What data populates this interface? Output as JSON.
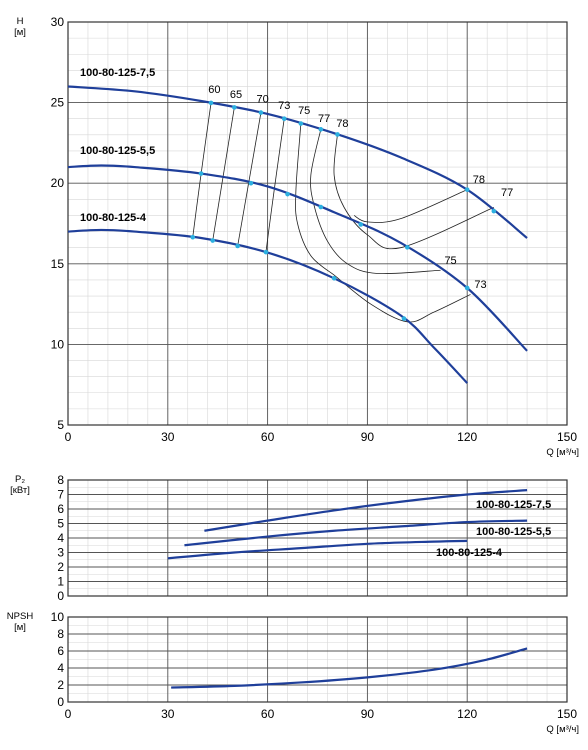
{
  "chart_data": [
    {
      "type": "line",
      "title": "",
      "ylabel": "H\n[м]",
      "xlabel": "Q [м³/ч]",
      "xlim": [
        0,
        150
      ],
      "ylim": [
        5,
        30
      ],
      "xticks": [
        0,
        30,
        60,
        90,
        120,
        150
      ],
      "yticks": [
        5,
        10,
        15,
        20,
        25,
        30
      ],
      "grid": true,
      "series": [
        {
          "name": "100-80-125-7,5",
          "x": [
            0,
            20,
            40,
            60,
            80,
            100,
            120,
            138
          ],
          "y": [
            26,
            25.7,
            25.1,
            24.3,
            23.1,
            21.6,
            19.6,
            16.6
          ]
        },
        {
          "name": "100-80-125-5,5",
          "x": [
            0,
            10,
            20,
            40,
            60,
            80,
            100,
            120,
            138
          ],
          "y": [
            21.0,
            21.1,
            21.0,
            20.6,
            19.8,
            18.2,
            16.3,
            13.5,
            9.6
          ]
        },
        {
          "name": "100-80-125-4",
          "x": [
            0,
            10,
            20,
            40,
            60,
            80,
            100,
            110,
            120
          ],
          "y": [
            17.0,
            17.1,
            17.0,
            16.6,
            15.7,
            14.1,
            11.8,
            9.8,
            7.6
          ]
        }
      ],
      "efficiency_curves": [
        {
          "label": "60",
          "x": [
            43,
            37.5
          ]
        },
        {
          "label": "65",
          "x": [
            50,
            43.5
          ]
        },
        {
          "label": "70",
          "x": [
            58,
            51
          ]
        },
        {
          "label": "73",
          "x": [
            65,
            59.5
          ],
          "label2": "73",
          "x2": [
            122,
            102
          ]
        },
        {
          "label": "75",
          "x": [
            70,
            67
          ],
          "label2": "75",
          "x2": [
            112,
            77
          ]
        },
        {
          "label": "77",
          "x": [
            76,
            74
          ],
          "label2": "77",
          "x2": [
            128,
            88
          ]
        },
        {
          "label": "78",
          "x": [
            81,
            86
          ],
          "label2": "78",
          "x2": [
            120,
            90
          ]
        }
      ]
    },
    {
      "type": "line",
      "ylabel": "P₂\n[кВт]",
      "xlim": [
        0,
        150
      ],
      "ylim": [
        0,
        8
      ],
      "yticks": [
        0,
        1,
        2,
        3,
        4,
        5,
        6,
        7,
        8
      ],
      "grid": true,
      "series": [
        {
          "name": "100-80-125-7,5",
          "x": [
            41,
            60,
            80,
            100,
            120,
            138
          ],
          "y": [
            4.5,
            5.2,
            5.9,
            6.5,
            7.0,
            7.3
          ]
        },
        {
          "name": "100-80-125-5,5",
          "x": [
            35,
            60,
            80,
            100,
            120,
            138
          ],
          "y": [
            3.5,
            4.1,
            4.5,
            4.8,
            5.1,
            5.2
          ]
        },
        {
          "name": "100-80-125-4",
          "x": [
            30,
            50,
            70,
            90,
            110,
            120
          ],
          "y": [
            2.6,
            3.0,
            3.3,
            3.6,
            3.75,
            3.8
          ]
        }
      ]
    },
    {
      "type": "line",
      "ylabel": "NPSH\n[м]",
      "xlabel": "Q [м³/ч]",
      "xlim": [
        0,
        150
      ],
      "ylim": [
        0,
        10
      ],
      "xticks": [
        0,
        30,
        60,
        90,
        120,
        150
      ],
      "yticks": [
        0,
        2,
        4,
        6,
        8,
        10
      ],
      "grid": true,
      "series": [
        {
          "name": "",
          "x": [
            31,
            50,
            70,
            90,
            110,
            125,
            138
          ],
          "y": [
            1.7,
            1.9,
            2.3,
            2.9,
            3.8,
            4.9,
            6.3
          ]
        }
      ]
    }
  ]
}
